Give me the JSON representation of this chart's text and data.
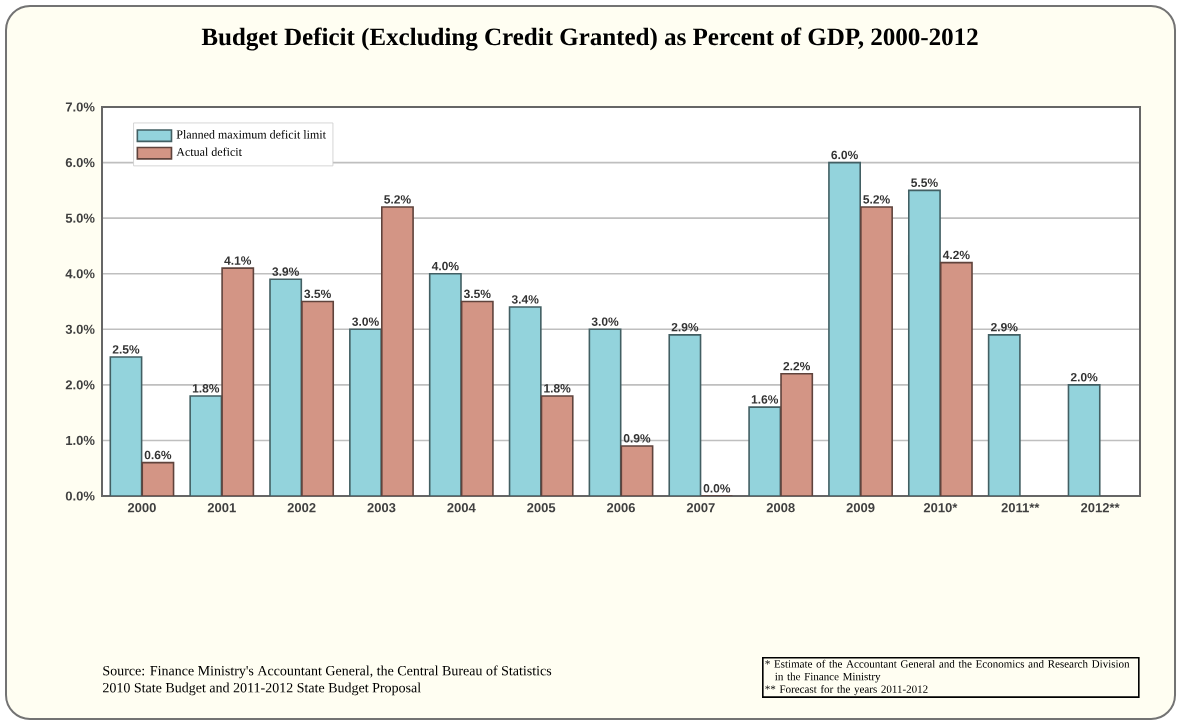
{
  "chart_data": {
    "type": "bar",
    "title": "Budget Deficit (Excluding Credit Granted) as Percent of GDP, 2000-2012",
    "categories": [
      "2000",
      "2001",
      "2002",
      "2003",
      "2004",
      "2005",
      "2006",
      "2007",
      "2008",
      "2009",
      "2010*",
      "2011**",
      "2012**"
    ],
    "series": [
      {
        "name": "Planned maximum deficit limit",
        "color": "#93d3dc",
        "values": [
          2.5,
          1.8,
          3.9,
          3.0,
          4.0,
          3.4,
          3.0,
          2.9,
          1.6,
          6.0,
          5.5,
          2.9,
          2.0
        ],
        "value_labels": [
          "2.5%",
          "1.8%",
          "3.9%",
          "3.0%",
          "4.0%",
          "3.4%",
          "3.0%",
          "2.9%",
          "1.6%",
          "6.0%",
          "5.5%",
          "2.9%",
          "2.0%"
        ]
      },
      {
        "name": "Actual deficit",
        "color": "#d39585",
        "values": [
          0.6,
          4.1,
          3.5,
          5.2,
          3.5,
          1.8,
          0.9,
          0.0,
          2.2,
          5.2,
          4.2,
          null,
          null
        ],
        "value_labels": [
          "0.6%",
          "4.1%",
          "3.5%",
          "5.2%",
          "3.5%",
          "1.8%",
          "0.9%",
          "0.0%",
          "2.2%",
          "5.2%",
          "4.2%",
          null,
          null
        ]
      }
    ],
    "ylim": [
      0,
      7
    ],
    "yticks": [
      {
        "value": 0,
        "label": "0.0%"
      },
      {
        "value": 1,
        "label": "1.0%"
      },
      {
        "value": 2,
        "label": "2.0%"
      },
      {
        "value": 3,
        "label": "3.0%"
      },
      {
        "value": 4,
        "label": "4.0%"
      },
      {
        "value": 5,
        "label": "5.0%"
      },
      {
        "value": 6,
        "label": "6.0%"
      },
      {
        "value": 7,
        "label": "7.0%"
      }
    ],
    "grid": "y",
    "legend": "top left",
    "annotations": [
      "Source: Finance Ministry's Accountant General, the Central Bureau of Statistics",
      "2010 State Budget and 2011-2012 State Budget Proposal",
      "* Estimate of the Accountant General and the Economics and Research Division in the Finance Ministry",
      "** Forecast for the years 2011-2012"
    ]
  }
}
